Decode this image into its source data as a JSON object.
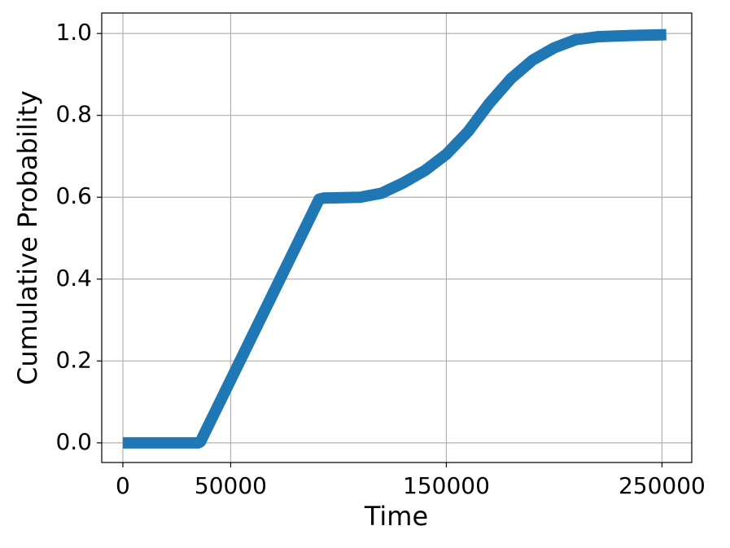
{
  "chart_data": {
    "type": "line",
    "x_label": "Time",
    "y_label": "Cumulative Probability",
    "x": [
      0,
      35000,
      36000,
      91000,
      93000,
      110000,
      120000,
      130000,
      140000,
      150000,
      160000,
      170000,
      180000,
      190000,
      200000,
      210000,
      220000,
      235000,
      252000
    ],
    "series": [
      {
        "color": "#1f77b4",
        "values": [
          0,
          0,
          0.003,
          0.595,
          0.598,
          0.6,
          0.61,
          0.635,
          0.665,
          0.705,
          0.76,
          0.83,
          0.89,
          0.935,
          0.965,
          0.985,
          0.992,
          0.995,
          0.997
        ]
      }
    ],
    "xlim": [
      -9800,
      263800
    ],
    "ylim": [
      -0.048,
      1.05
    ],
    "xticks": [
      0,
      50000,
      150000,
      250000
    ],
    "yticks": [
      {
        "value": 0,
        "label": "0.0"
      },
      0.2,
      0.4,
      0.6,
      0.8,
      {
        "value": 1,
        "label": "1.0"
      }
    ],
    "grid": true
  }
}
